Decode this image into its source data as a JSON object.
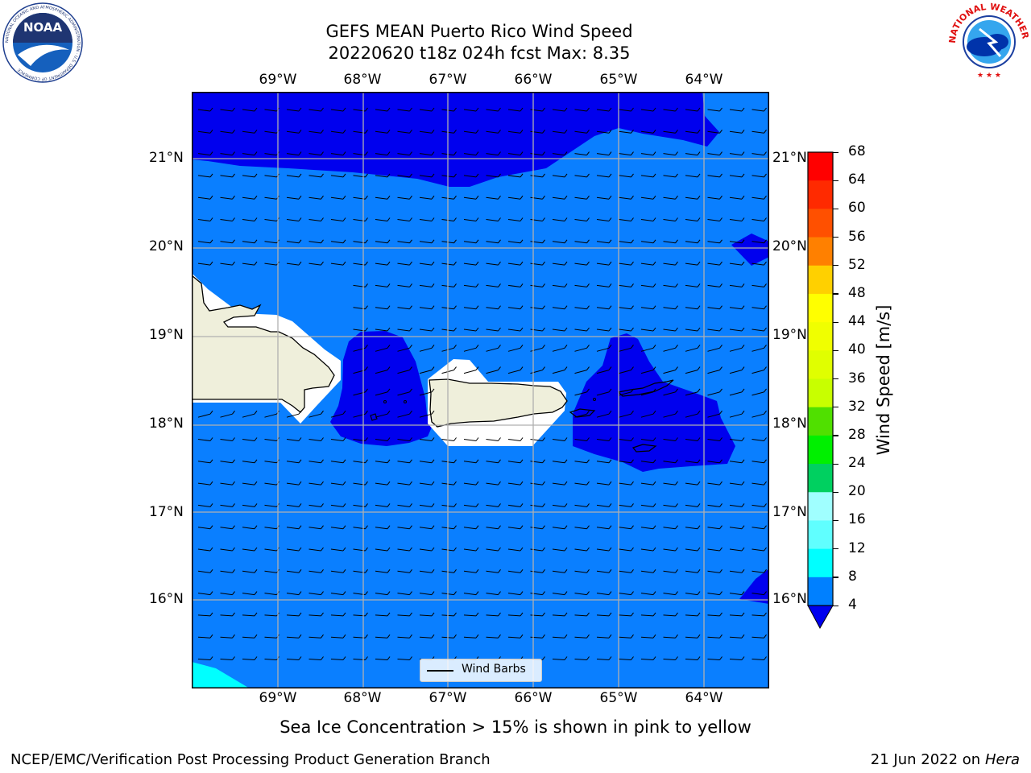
{
  "header": {
    "title_line1": "GEFS MEAN Puerto Rico Wind Speed",
    "title_line2": "20220620 t18z 024h fcst   Max: 8.35"
  },
  "logos": {
    "noaa_text": "NOAA",
    "noaa_ring": "NATIONAL OCEANIC AND ATMOSPHERIC ADMINISTRATION · U.S. DEPARTMENT OF COMMERCE",
    "nws_ring": "NATIONAL WEATHER SERVICE"
  },
  "map": {
    "lon_labels": [
      "69°W",
      "68°W",
      "67°W",
      "66°W",
      "65°W",
      "64°W"
    ],
    "lat_labels": [
      "21°N",
      "20°N",
      "19°N",
      "18°N",
      "17°N",
      "16°N"
    ],
    "legend_label": "Wind Barbs",
    "colors": {
      "deep_blue": "#0000ee",
      "mid_blue": "#0a7fff",
      "cyan": "#00ffff",
      "land": "#efefdb",
      "grid": "#b0b0b0"
    }
  },
  "colorbar": {
    "label": "Wind Speed [m/s]",
    "ticks": [
      "68",
      "64",
      "60",
      "56",
      "52",
      "48",
      "44",
      "40",
      "36",
      "32",
      "28",
      "24",
      "20",
      "16",
      "12",
      "8",
      "4"
    ],
    "segment_colors": [
      "#ff0000",
      "#ff2a00",
      "#ff5000",
      "#ff8000",
      "#ffb000",
      "#ffd000",
      "#ffff00",
      "#f0ff00",
      "#e0ff00",
      "#c8ff00",
      "#50e000",
      "#00f000",
      "#00d060",
      "#50ff90",
      "#a0ffff",
      "#60ffff",
      "#00ffff",
      "#0080ff"
    ],
    "extend_color": "#0000ee"
  },
  "footer": {
    "note": "Sea Ice Concentration > 15% is shown in pink to yellow",
    "left": "NCEP/EMC/Verification Post Processing Product Generation Branch",
    "right_date": "21 Jun 2022 on",
    "right_host": "Hera"
  }
}
